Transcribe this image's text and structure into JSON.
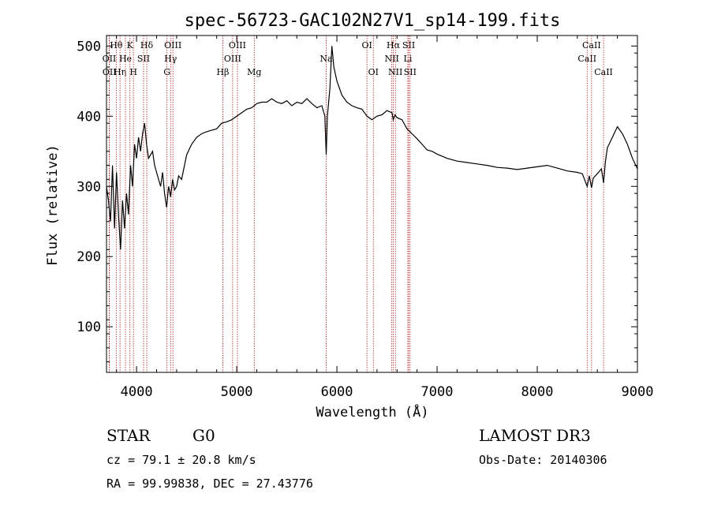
{
  "chart_data": {
    "type": "line",
    "title": "spec-56723-GAC102N27V1_sp14-199.fits",
    "xlabel": "Wavelength (Å)",
    "ylabel": "Flux (relative)",
    "xlim": [
      3700,
      9000
    ],
    "ylim": [
      35,
      515
    ],
    "x_ticks": [
      4000,
      5000,
      6000,
      7000,
      8000,
      9000
    ],
    "y_ticks": [
      100,
      200,
      300,
      400,
      500
    ],
    "grid": false,
    "series": [
      {
        "x": [
          3700,
          3720,
          3740,
          3760,
          3780,
          3800,
          3820,
          3840,
          3860,
          3880,
          3900,
          3920,
          3940,
          3960,
          3980,
          4000,
          4020,
          4040,
          4060,
          4080,
          4100,
          4120,
          4140,
          4160,
          4180,
          4200,
          4220,
          4240,
          4260,
          4280,
          4300,
          4320,
          4340,
          4360,
          4380,
          4400,
          4420,
          4450,
          4500,
          4550,
          4600,
          4650,
          4700,
          4750,
          4800,
          4850,
          4900,
          4950,
          5000,
          5050,
          5100,
          5150,
          5200,
          5250,
          5300,
          5350,
          5400,
          5450,
          5500,
          5550,
          5600,
          5650,
          5700,
          5750,
          5800,
          5850,
          5880,
          5893,
          5905,
          5930,
          5950,
          5970,
          6000,
          6050,
          6100,
          6150,
          6200,
          6250,
          6300,
          6350,
          6400,
          6450,
          6500,
          6550,
          6563,
          6580,
          6600,
          6650,
          6700,
          6750,
          6800,
          6850,
          6900,
          6950,
          7000,
          7100,
          7200,
          7300,
          7400,
          7500,
          7600,
          7700,
          7800,
          7900,
          8000,
          8100,
          8200,
          8300,
          8400,
          8450,
          8498,
          8520,
          8542,
          8560,
          8600,
          8640,
          8662,
          8680,
          8700,
          8750,
          8800,
          8850,
          8900,
          8950,
          9000
        ],
        "y": [
          300,
          280,
          250,
          330,
          240,
          320,
          260,
          210,
          280,
          240,
          290,
          260,
          330,
          300,
          360,
          340,
          370,
          350,
          375,
          390,
          360,
          340,
          345,
          350,
          330,
          320,
          310,
          300,
          320,
          290,
          270,
          300,
          285,
          310,
          295,
          300,
          315,
          310,
          345,
          360,
          370,
          375,
          378,
          380,
          382,
          390,
          392,
          395,
          400,
          405,
          410,
          412,
          418,
          420,
          420,
          425,
          420,
          418,
          422,
          415,
          420,
          418,
          425,
          418,
          412,
          415,
          400,
          345,
          400,
          440,
          500,
          470,
          450,
          430,
          420,
          415,
          412,
          410,
          400,
          395,
          400,
          402,
          408,
          405,
          395,
          402,
          398,
          395,
          382,
          375,
          368,
          360,
          352,
          350,
          346,
          340,
          336,
          334,
          332,
          330,
          327,
          326,
          324,
          326,
          328,
          330,
          326,
          322,
          320,
          318,
          300,
          315,
          298,
          312,
          318,
          325,
          305,
          335,
          355,
          370,
          385,
          375,
          360,
          340,
          325
        ]
      }
    ],
    "line_labels": [
      {
        "wl": 3797,
        "text": "Hθ",
        "row": 1
      },
      {
        "wl": 3835,
        "text": "Hη",
        "row": 3
      },
      {
        "wl": 3889,
        "text": "He",
        "row": 2
      },
      {
        "wl": 3934,
        "text": "K",
        "row": 1
      },
      {
        "wl": 3969,
        "text": "H",
        "row": 3
      },
      {
        "wl": 3727,
        "text": "OII",
        "row": 2
      },
      {
        "wl": 3729,
        "text": "OII",
        "row": 3
      },
      {
        "wl": 4070,
        "text": "SII",
        "row": 2
      },
      {
        "wl": 4102,
        "text": "Hδ",
        "row": 1
      },
      {
        "wl": 4304,
        "text": "G",
        "row": 3
      },
      {
        "wl": 4340,
        "text": "Hγ",
        "row": 2
      },
      {
        "wl": 4363,
        "text": "OIII",
        "row": 1
      },
      {
        "wl": 4861,
        "text": "Hβ",
        "row": 3
      },
      {
        "wl": 4959,
        "text": "OIII",
        "row": 2
      },
      {
        "wl": 5007,
        "text": "OIII",
        "row": 1
      },
      {
        "wl": 5175,
        "text": "Mg",
        "row": 3
      },
      {
        "wl": 5893,
        "text": "Na",
        "row": 2
      },
      {
        "wl": 6300,
        "text": "OI",
        "row": 1
      },
      {
        "wl": 6364,
        "text": "OI",
        "row": 3
      },
      {
        "wl": 6548,
        "text": "NII",
        "row": 2
      },
      {
        "wl": 6563,
        "text": "Hα",
        "row": 1
      },
      {
        "wl": 6584,
        "text": "NII",
        "row": 3
      },
      {
        "wl": 6708,
        "text": "Li",
        "row": 2
      },
      {
        "wl": 6717,
        "text": "SII",
        "row": 1
      },
      {
        "wl": 6731,
        "text": "SII",
        "row": 3
      },
      {
        "wl": 8498,
        "text": "CaII",
        "row": 2
      },
      {
        "wl": 8542,
        "text": "CaII",
        "row": 1
      },
      {
        "wl": 8662,
        "text": "CaII",
        "row": 3
      }
    ]
  },
  "info": {
    "class": "STAR",
    "subclass": "G0",
    "survey": "LAMOST DR3",
    "cz": "cz = 79.1 ± 20.8 km/s",
    "obs_date": "Obs-Date: 20140306",
    "radec": "RA =  99.99838, DEC =  27.43776"
  }
}
